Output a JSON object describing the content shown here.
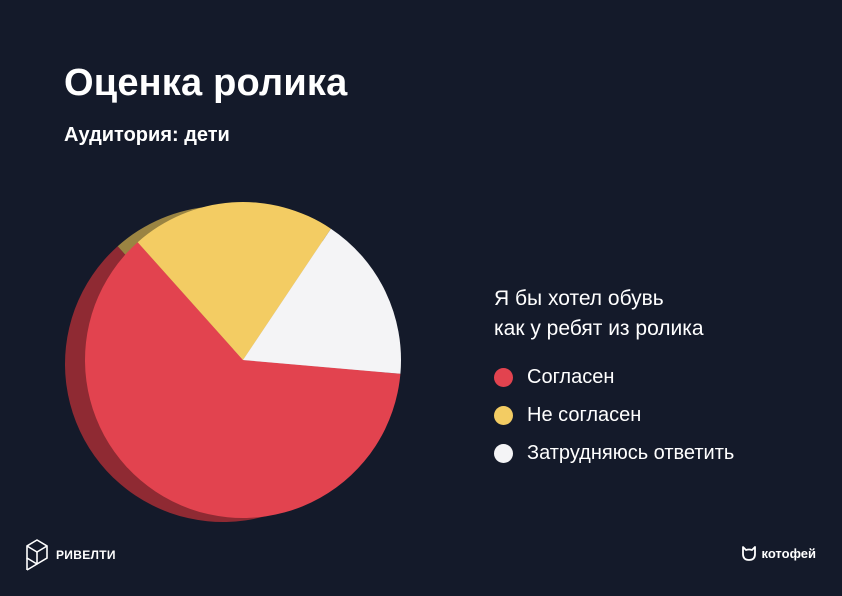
{
  "header": {
    "title": "Оценка ролика",
    "subtitle": "Аудитория: дети"
  },
  "chart_data": {
    "type": "pie",
    "title": "Я бы хотел обувь как у ребят из ролика",
    "title_lines": [
      "Я бы хотел обувь",
      "как у ребят из ролика"
    ],
    "legend_position": "right",
    "slices": [
      {
        "label": "Согласен",
        "value": 62,
        "color": "#e2434f",
        "side_color": "#8f2a33"
      },
      {
        "label": "Не согласен",
        "value": 21,
        "color": "#f3cc63",
        "side_color": "#9a8442"
      },
      {
        "label": "Затрудняюсь ответить",
        "value": 17,
        "color": "#f4f4f6",
        "side_color": "#a9a9ad"
      }
    ]
  },
  "brands": {
    "left": "РИВЕЛТИ",
    "right": "котофей"
  }
}
